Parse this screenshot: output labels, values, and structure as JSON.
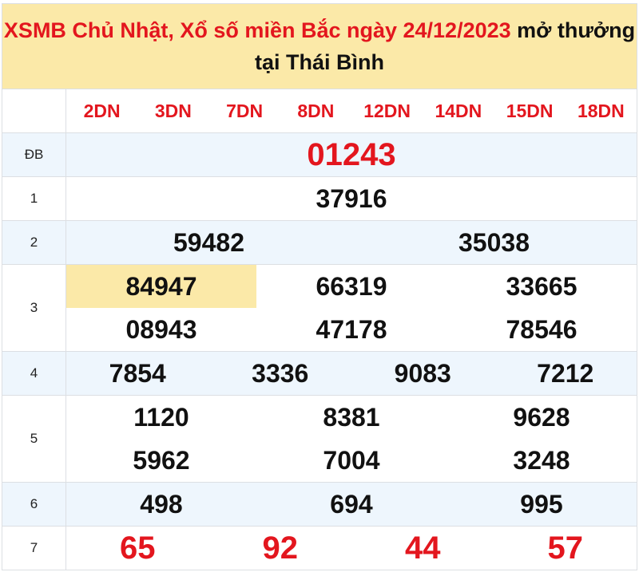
{
  "title": {
    "red_part": "XSMB Chủ Nhật, Xổ số miền Bắc ngày 24/12/2023",
    "black_part": " mở thưởng tại Thái Bình"
  },
  "codes": [
    "2DN",
    "3DN",
    "7DN",
    "8DN",
    "12DN",
    "14DN",
    "15DN",
    "18DN"
  ],
  "prizes": [
    {
      "label": "ĐB",
      "lines": [
        [
          "01243"
        ]
      ]
    },
    {
      "label": "1",
      "lines": [
        [
          "37916"
        ]
      ]
    },
    {
      "label": "2",
      "lines": [
        [
          "59482",
          "35038"
        ]
      ]
    },
    {
      "label": "3",
      "lines": [
        [
          "84947",
          "66319",
          "33665"
        ],
        [
          "08943",
          "47178",
          "78546"
        ]
      ]
    },
    {
      "label": "4",
      "lines": [
        [
          "7854",
          "3336",
          "9083",
          "7212"
        ]
      ]
    },
    {
      "label": "5",
      "lines": [
        [
          "1120",
          "8381",
          "9628"
        ],
        [
          "5962",
          "7004",
          "3248"
        ]
      ]
    },
    {
      "label": "6",
      "lines": [
        [
          "498",
          "694",
          "995"
        ]
      ]
    },
    {
      "label": "7",
      "lines": [
        [
          "65",
          "92",
          "44",
          "57"
        ]
      ]
    }
  ],
  "colors": {
    "accent": "#e3161e",
    "title_bg": "#fbe9a8",
    "alt_row": "#eef6fd"
  }
}
